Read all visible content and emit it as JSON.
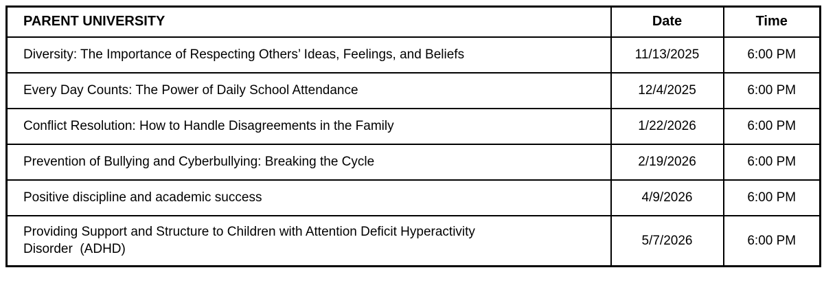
{
  "table": {
    "title": "PARENT UNIVERSITY",
    "columns": {
      "date_label": "Date",
      "time_label": "Time"
    },
    "rows": [
      {
        "topic": "Diversity: The Importance of Respecting Others’ Ideas, Feelings, and Beliefs",
        "date": "11/13/2025",
        "time": "6:00 PM"
      },
      {
        "topic": "Every Day Counts: The Power of Daily School Attendance",
        "date": "12/4/2025",
        "time": "6:00 PM"
      },
      {
        "topic": "Conflict Resolution: How to Handle Disagreements in the Family",
        "date": "1/22/2026",
        "time": "6:00 PM"
      },
      {
        "topic": "Prevention of Bullying and Cyberbullying: Breaking the Cycle",
        "date": "2/19/2026",
        "time": "6:00 PM"
      },
      {
        "topic": "Positive discipline and academic success",
        "date": "4/9/2026",
        "time": "6:00 PM"
      },
      {
        "topic": "Providing Support and Structure to Children with Attention Deficit Hyperactivity\nDisorder  (ADHD)",
        "date": "5/7/2026",
        "time": "6:00 PM"
      }
    ],
    "colors": {
      "border": "#000000",
      "text": "#000000",
      "background": "#ffffff"
    }
  }
}
